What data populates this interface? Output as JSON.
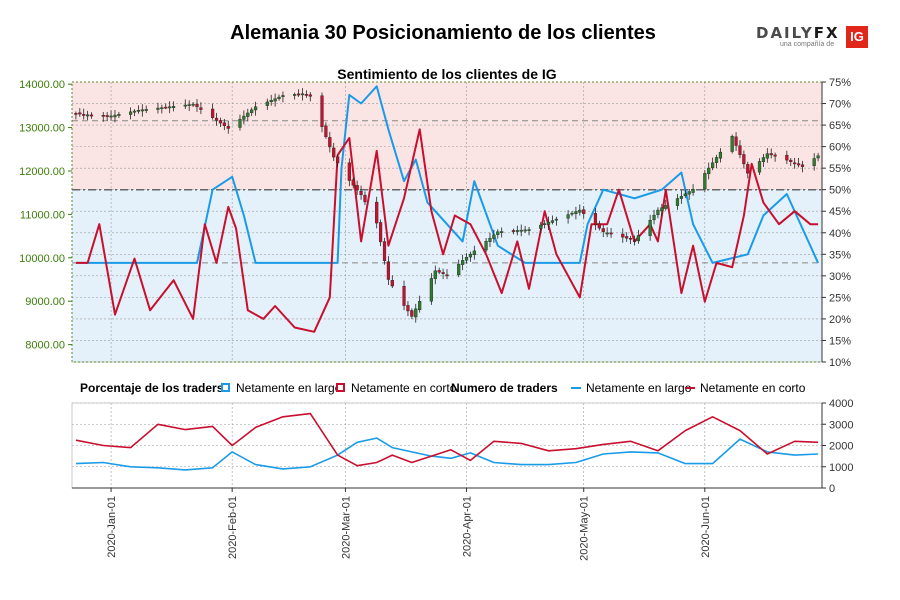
{
  "title": "Alemania 30 Posicionamiento de los clientes",
  "logo": {
    "text_daily": "DAILY",
    "text_fx": "FX",
    "sub": "una compañía de",
    "badge": "IG"
  },
  "colors": {
    "long": "#1a9be8",
    "short": "#c8102e",
    "up_candle": "#2e7d2e",
    "down_candle": "#c8102e",
    "bg_short": "#fbe4e4",
    "bg_long": "#e4f1fa",
    "price_axis": "#3c7d0a"
  },
  "legend": {
    "pct_title": "Porcentaje de los traders",
    "net_long": "Netamente en largo",
    "net_short": "Netamente en corto",
    "num_title": "Numero de traders"
  },
  "chart_data": [
    {
      "type": "candlestick",
      "title": "Sentimiento de los clientes de IG",
      "price_axis_ticks": [
        "8000.00",
        "9000.00",
        "10000.00",
        "11000.00",
        "12000.00",
        "13000.00",
        "14000.00"
      ],
      "price_range": [
        7600,
        14050
      ],
      "pct_axis_ticks": [
        "10%",
        "15%",
        "20%",
        "25%",
        "30%",
        "35%",
        "40%",
        "45%",
        "50%",
        "55%",
        "60%",
        "65%",
        "70%",
        "75%"
      ],
      "pct_range": [
        10,
        75
      ],
      "reference_lines_pct": [
        33,
        50,
        66
      ],
      "date_ticks": [
        "2020-Jan-01",
        "2020-Feb-01",
        "2020-Mar-01",
        "2020-Apr-01",
        "2020-May-01",
        "2020-Jun-01"
      ],
      "price_path": [
        [
          "2019-12-23",
          13320
        ],
        [
          "2019-12-31",
          13250
        ],
        [
          "2020-01-08",
          13400
        ],
        [
          "2020-01-16",
          13480
        ],
        [
          "2020-01-22",
          13540
        ],
        [
          "2020-01-31",
          12980
        ],
        [
          "2020-02-07",
          13480
        ],
        [
          "2020-02-14",
          13740
        ],
        [
          "2020-02-19",
          13780
        ],
        [
          "2020-02-21",
          13720
        ],
        [
          "2020-02-27",
          12320
        ],
        [
          "2020-03-02",
          11780
        ],
        [
          "2020-03-05",
          11450
        ],
        [
          "2020-03-09",
          10800
        ],
        [
          "2020-03-12",
          9500
        ],
        [
          "2020-03-16",
          8900
        ],
        [
          "2020-03-18",
          8650
        ],
        [
          "2020-03-24",
          9700
        ],
        [
          "2020-03-27",
          9600
        ],
        [
          "2020-03-31",
          9940
        ],
        [
          "2020-04-09",
          10600
        ],
        [
          "2020-04-17",
          10650
        ],
        [
          "2020-04-30",
          11100
        ],
        [
          "2020-05-06",
          10600
        ],
        [
          "2020-05-14",
          10400
        ],
        [
          "2020-05-20",
          11100
        ],
        [
          "2020-05-29",
          11580
        ],
        [
          "2020-06-08",
          12800
        ],
        [
          "2020-06-12",
          11950
        ],
        [
          "2020-06-17",
          12400
        ],
        [
          "2020-06-22",
          12250
        ],
        [
          "2020-06-26",
          12100
        ],
        [
          "2020-06-30",
          12350
        ]
      ],
      "long_pct_path": [
        [
          "2019-12-23",
          33
        ],
        [
          "2020-01-23",
          33
        ],
        [
          "2020-01-27",
          50
        ],
        [
          "2020-02-01",
          53
        ],
        [
          "2020-02-04",
          44
        ],
        [
          "2020-02-07",
          33
        ],
        [
          "2020-02-28",
          33
        ],
        [
          "2020-02-29",
          55
        ],
        [
          "2020-03-02",
          72
        ],
        [
          "2020-03-05",
          70
        ],
        [
          "2020-03-09",
          74
        ],
        [
          "2020-03-12",
          64
        ],
        [
          "2020-03-16",
          52
        ],
        [
          "2020-03-19",
          57
        ],
        [
          "2020-03-22",
          47
        ],
        [
          "2020-03-31",
          38
        ],
        [
          "2020-04-03",
          52
        ],
        [
          "2020-04-09",
          37
        ],
        [
          "2020-04-16",
          33
        ],
        [
          "2020-04-30",
          33
        ],
        [
          "2020-05-02",
          42
        ],
        [
          "2020-05-06",
          50
        ],
        [
          "2020-05-14",
          48
        ],
        [
          "2020-05-21",
          50
        ],
        [
          "2020-05-26",
          54
        ],
        [
          "2020-05-29",
          42
        ],
        [
          "2020-06-03",
          33
        ],
        [
          "2020-06-12",
          35
        ],
        [
          "2020-06-16",
          44
        ],
        [
          "2020-06-22",
          49
        ],
        [
          "2020-06-30",
          33
        ]
      ],
      "short_pct_path": [
        [
          "2019-12-23",
          33
        ],
        [
          "2019-12-26",
          33
        ],
        [
          "2019-12-29",
          42
        ],
        [
          "2020-01-02",
          21
        ],
        [
          "2020-01-07",
          34
        ],
        [
          "2020-01-11",
          22
        ],
        [
          "2020-01-17",
          29
        ],
        [
          "2020-01-22",
          20
        ],
        [
          "2020-01-25",
          42
        ],
        [
          "2020-01-28",
          33
        ],
        [
          "2020-01-31",
          46
        ],
        [
          "2020-02-02",
          41
        ],
        [
          "2020-02-05",
          22
        ],
        [
          "2020-02-09",
          20
        ],
        [
          "2020-02-12",
          23
        ],
        [
          "2020-02-17",
          18
        ],
        [
          "2020-02-22",
          17
        ],
        [
          "2020-02-26",
          25
        ],
        [
          "2020-02-28",
          58
        ],
        [
          "2020-03-02",
          62
        ],
        [
          "2020-03-05",
          38
        ],
        [
          "2020-03-09",
          59
        ],
        [
          "2020-03-12",
          37
        ],
        [
          "2020-03-16",
          48
        ],
        [
          "2020-03-20",
          64
        ],
        [
          "2020-03-23",
          45
        ],
        [
          "2020-03-26",
          35
        ],
        [
          "2020-03-29",
          44
        ],
        [
          "2020-04-02",
          42
        ],
        [
          "2020-04-06",
          35
        ],
        [
          "2020-04-10",
          26
        ],
        [
          "2020-04-14",
          38
        ],
        [
          "2020-04-17",
          27
        ],
        [
          "2020-04-21",
          45
        ],
        [
          "2020-04-24",
          35
        ],
        [
          "2020-04-30",
          25
        ],
        [
          "2020-05-03",
          42
        ],
        [
          "2020-05-07",
          42
        ],
        [
          "2020-05-10",
          50
        ],
        [
          "2020-05-14",
          38
        ],
        [
          "2020-05-18",
          42
        ],
        [
          "2020-05-20",
          38
        ],
        [
          "2020-05-22",
          50
        ],
        [
          "2020-05-26",
          26
        ],
        [
          "2020-05-29",
          37
        ],
        [
          "2020-06-01",
          24
        ],
        [
          "2020-06-04",
          33
        ],
        [
          "2020-06-08",
          32
        ],
        [
          "2020-06-11",
          44
        ],
        [
          "2020-06-13",
          56
        ],
        [
          "2020-06-16",
          47
        ],
        [
          "2020-06-20",
          42
        ],
        [
          "2020-06-24",
          45
        ],
        [
          "2020-06-28",
          42
        ],
        [
          "2020-06-30",
          42
        ]
      ]
    },
    {
      "type": "line",
      "title": "Numero de traders",
      "y_ticks": [
        "0",
        "1000",
        "2000",
        "3000",
        "4000"
      ],
      "ylim": [
        0,
        4000
      ],
      "series": [
        {
          "name": "Netamente en largo",
          "points": [
            [
              "2019-12-23",
              1150
            ],
            [
              "2019-12-30",
              1200
            ],
            [
              "2020-01-06",
              1000
            ],
            [
              "2020-01-13",
              950
            ],
            [
              "2020-01-20",
              850
            ],
            [
              "2020-01-27",
              950
            ],
            [
              "2020-02-01",
              1700
            ],
            [
              "2020-02-07",
              1100
            ],
            [
              "2020-02-14",
              900
            ],
            [
              "2020-02-21",
              1000
            ],
            [
              "2020-02-28",
              1550
            ],
            [
              "2020-03-04",
              2150
            ],
            [
              "2020-03-09",
              2350
            ],
            [
              "2020-03-13",
              1900
            ],
            [
              "2020-03-18",
              1700
            ],
            [
              "2020-03-23",
              1500
            ],
            [
              "2020-03-28",
              1400
            ],
            [
              "2020-04-02",
              1650
            ],
            [
              "2020-04-08",
              1200
            ],
            [
              "2020-04-15",
              1100
            ],
            [
              "2020-04-22",
              1100
            ],
            [
              "2020-04-29",
              1200
            ],
            [
              "2020-05-06",
              1600
            ],
            [
              "2020-05-13",
              1700
            ],
            [
              "2020-05-20",
              1650
            ],
            [
              "2020-05-27",
              1150
            ],
            [
              "2020-06-03",
              1150
            ],
            [
              "2020-06-10",
              2300
            ],
            [
              "2020-06-17",
              1700
            ],
            [
              "2020-06-24",
              1550
            ],
            [
              "2020-06-30",
              1600
            ]
          ]
        },
        {
          "name": "Netamente en corto",
          "points": [
            [
              "2019-12-23",
              2250
            ],
            [
              "2019-12-30",
              2000
            ],
            [
              "2020-01-06",
              1900
            ],
            [
              "2020-01-13",
              3000
            ],
            [
              "2020-01-20",
              2750
            ],
            [
              "2020-01-27",
              2900
            ],
            [
              "2020-02-01",
              2000
            ],
            [
              "2020-02-07",
              2850
            ],
            [
              "2020-02-14",
              3350
            ],
            [
              "2020-02-21",
              3500
            ],
            [
              "2020-02-28",
              1550
            ],
            [
              "2020-03-04",
              1050
            ],
            [
              "2020-03-09",
              1200
            ],
            [
              "2020-03-13",
              1550
            ],
            [
              "2020-03-18",
              1200
            ],
            [
              "2020-03-23",
              1500
            ],
            [
              "2020-03-28",
              1800
            ],
            [
              "2020-04-02",
              1300
            ],
            [
              "2020-04-08",
              2200
            ],
            [
              "2020-04-15",
              2100
            ],
            [
              "2020-04-22",
              1750
            ],
            [
              "2020-04-29",
              1850
            ],
            [
              "2020-05-06",
              2050
            ],
            [
              "2020-05-13",
              2200
            ],
            [
              "2020-05-20",
              1750
            ],
            [
              "2020-05-27",
              2700
            ],
            [
              "2020-06-03",
              3350
            ],
            [
              "2020-06-10",
              2700
            ],
            [
              "2020-06-17",
              1600
            ],
            [
              "2020-06-24",
              2200
            ],
            [
              "2020-06-30",
              2150
            ]
          ]
        }
      ]
    }
  ]
}
